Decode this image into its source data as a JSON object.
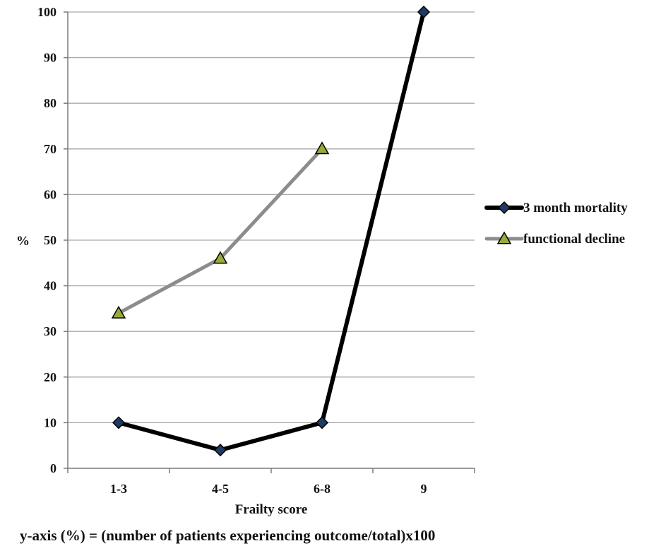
{
  "chart_data": {
    "type": "line",
    "categories": [
      "1-3",
      "4-5",
      "6-8",
      "9"
    ],
    "series": [
      {
        "name": "3 month mortality",
        "values": [
          10,
          4,
          10,
          100
        ],
        "color": "#000000",
        "marker": "diamond",
        "marker_color": "#1f3a63"
      },
      {
        "name": "functional decline",
        "values": [
          34,
          46,
          70,
          null
        ],
        "color": "#8c8c8c",
        "marker": "triangle",
        "marker_color": "#9aaa3a"
      }
    ],
    "xlabel": "Frailty score",
    "ylabel": "%",
    "ylim": [
      0,
      100
    ],
    "yticks": [
      0,
      10,
      20,
      30,
      40,
      50,
      60,
      70,
      80,
      90,
      100
    ],
    "grid": true,
    "legend_position": "right",
    "footnote": "y-axis (%) = (number of patients experiencing outcome/total)x100"
  }
}
